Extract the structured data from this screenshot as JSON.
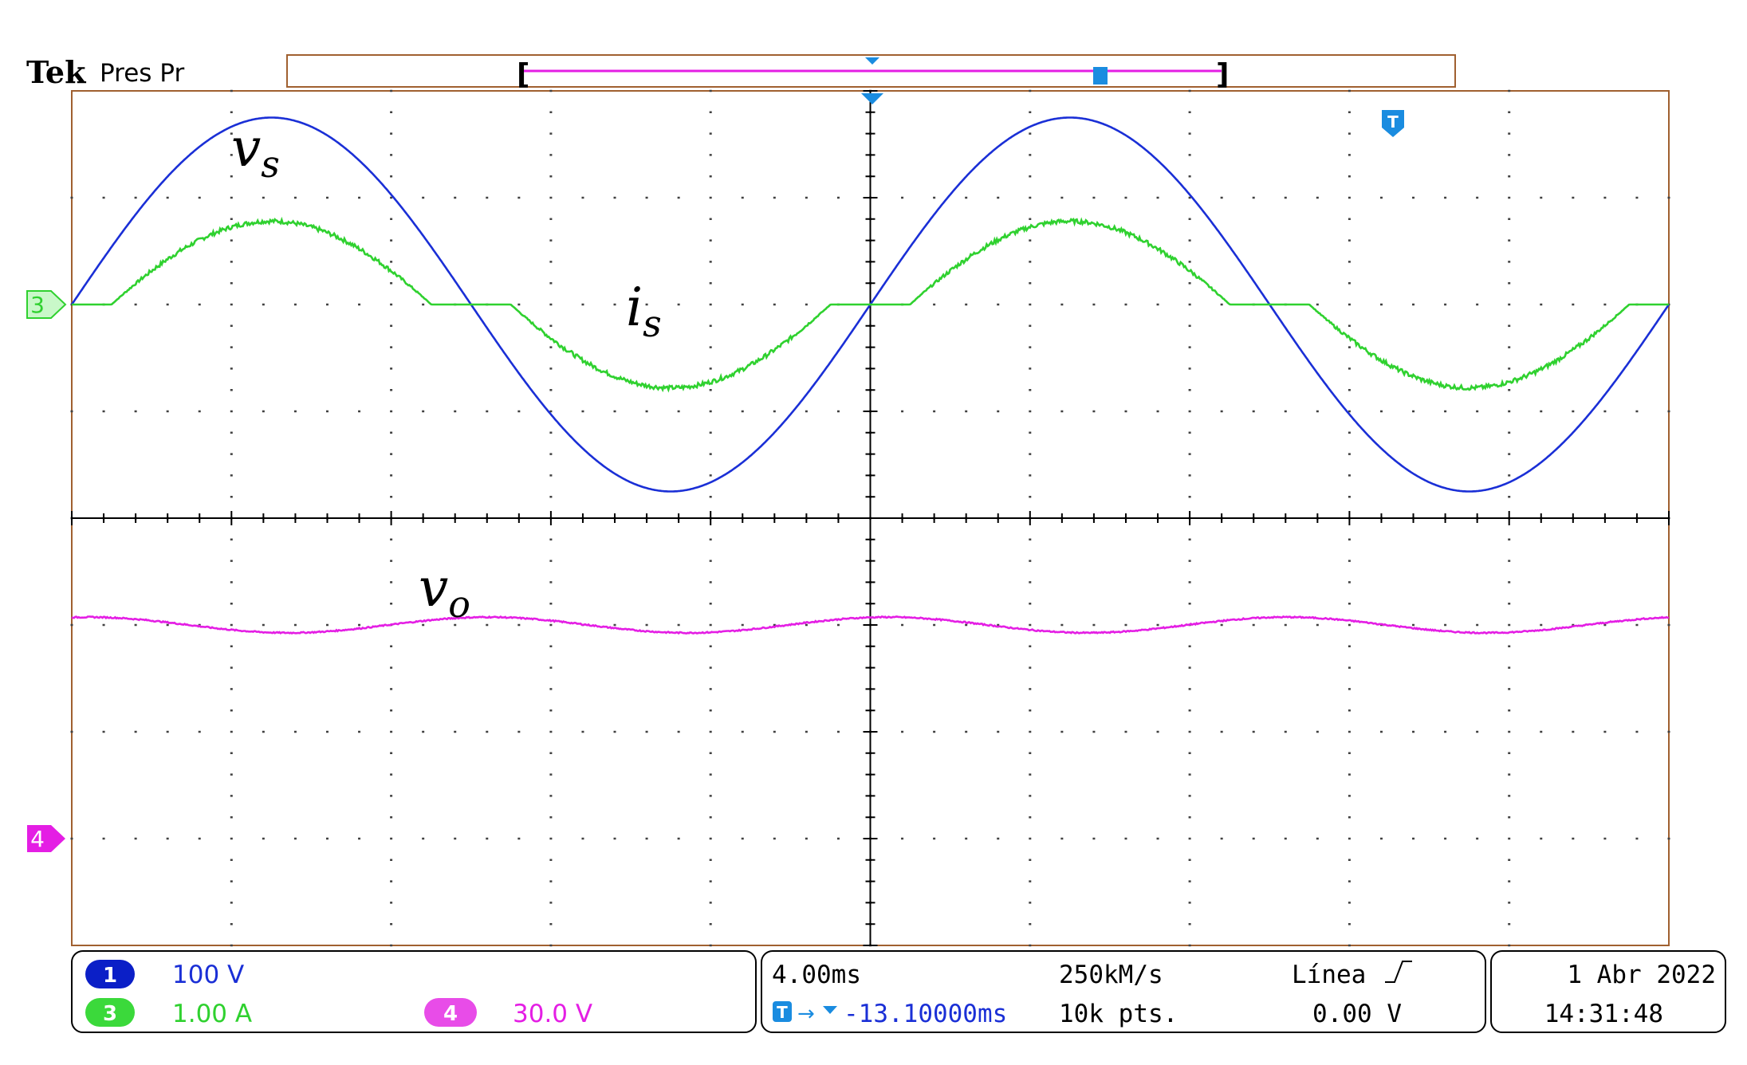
{
  "header": {
    "brand": "Tek",
    "status": "Pres Pr"
  },
  "trigger_marker": {
    "label": "T"
  },
  "chart_data": {
    "type": "line",
    "title": "",
    "grid": true,
    "x_divisions": 10,
    "y_divisions": 8,
    "x_unit_per_div": "4.00ms",
    "x_range_ms": [
      -20,
      20
    ],
    "series": [
      {
        "name": "vs",
        "channel": "1",
        "color": "#1a2fd6",
        "scale": "100 V",
        "units_per_div": 100,
        "offset_div": 2.0,
        "wave": {
          "shape": "sine",
          "freq_hz": 50,
          "amplitude": 175,
          "phase_zero_ms": 0
        }
      },
      {
        "name": "is",
        "channel": "3",
        "color": "#2fd12f",
        "scale": "1.00 A",
        "units_per_div": 1.0,
        "offset_div": 2.0,
        "wave": {
          "shape": "sine-with-deadband",
          "freq_hz": 50,
          "amplitude": 0.78,
          "deadband": 0.24,
          "phase_zero_ms": 0
        }
      },
      {
        "name": "vo",
        "channel": "4",
        "color": "#e41ee4",
        "scale": "30.0 V",
        "units_per_div": 30.0,
        "offset_div": -3.0,
        "wave": {
          "shape": "ripple",
          "freq_hz": 100,
          "mean": 60,
          "amplitude": 2.2
        }
      }
    ],
    "annotations": [
      {
        "series": "vs",
        "base": "v",
        "sub": "s"
      },
      {
        "series": "is",
        "base": "i",
        "sub": "s"
      },
      {
        "series": "vo",
        "base": "v",
        "sub": "o"
      }
    ]
  },
  "channel_markers": [
    {
      "id": "ch3-marker",
      "label": "3",
      "color": "#2fd12f"
    },
    {
      "id": "ch4-marker",
      "label": "4",
      "color": "#e41ee4"
    }
  ],
  "status_bar": {
    "channels": [
      {
        "num": "1",
        "scale": "100 V",
        "color": "#1a2fd6"
      },
      {
        "num": "3",
        "scale": "1.00 A",
        "color": "#2fd12f"
      },
      {
        "num": "4",
        "scale": "30.0 V",
        "color": "#e41ee4"
      }
    ],
    "timebase": "4.00ms",
    "sample_rate": "250kM/s",
    "trigger_source": "Línea",
    "trigger_position": "-13.10000ms",
    "record_length": "10k pts.",
    "trigger_level": "0.00 V",
    "date": "1 Abr  2022",
    "time": "14:31:48"
  }
}
